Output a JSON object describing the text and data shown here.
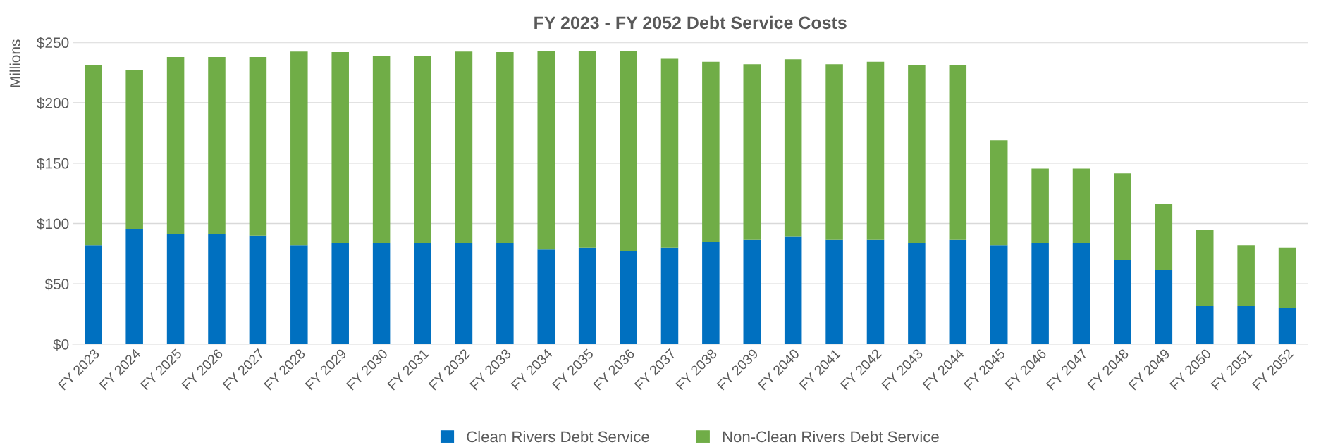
{
  "chart_data": {
    "type": "bar",
    "title": "FY 2023 - FY 2052 Debt Service Costs",
    "ylabel": "Millions",
    "categories": [
      "FY 2023",
      "FY 2024",
      "FY 2025",
      "FY 2026",
      "FY 2027",
      "FY 2028",
      "FY 2029",
      "FY 2030",
      "FY 2031",
      "FY 2032",
      "FY 2033",
      "FY 2034",
      "FY 2035",
      "FY 2036",
      "FY 2037",
      "FY 2038",
      "FY 2039",
      "FY 2040",
      "FY 2041",
      "FY 2042",
      "FY 2043",
      "FY 2044",
      "FY 2045",
      "FY 2046",
      "FY 2047",
      "FY 2048",
      "FY 2049",
      "FY 2050",
      "FY 2051",
      "FY 2052"
    ],
    "stacked": true,
    "series": [
      {
        "name": "Clean Rivers Debt Service",
        "color": "#0070c0",
        "values": [
          82,
          95,
          91.5,
          91.5,
          90,
          82,
          84,
          84,
          84,
          84,
          84,
          78.5,
          80,
          77,
          80,
          84.5,
          86.5,
          89.5,
          86.5,
          86.5,
          84,
          86.5,
          82,
          84,
          84,
          70,
          61.5,
          32,
          32,
          30
        ]
      },
      {
        "name": "Non-Clean Rivers Debt Service",
        "color": "#70ad47",
        "values": [
          149,
          132.5,
          146.5,
          146.5,
          148,
          160.5,
          158,
          155,
          155,
          158.5,
          158,
          164.5,
          163,
          166,
          156.5,
          149.5,
          145.5,
          146.5,
          145.5,
          147.5,
          147.5,
          145,
          87,
          61.5,
          61.5,
          71.5,
          54.5,
          62.5,
          50,
          50
        ]
      }
    ],
    "ylim": [
      0,
      250
    ],
    "yticks": [
      {
        "value": 0,
        "label": "$0"
      },
      {
        "value": 50,
        "label": "$50"
      },
      {
        "value": 100,
        "label": "$100"
      },
      {
        "value": 150,
        "label": "$150"
      },
      {
        "value": 200,
        "label": "$200"
      },
      {
        "value": 250,
        "label": "$250"
      }
    ],
    "grid": "y",
    "legend": "bottom"
  }
}
